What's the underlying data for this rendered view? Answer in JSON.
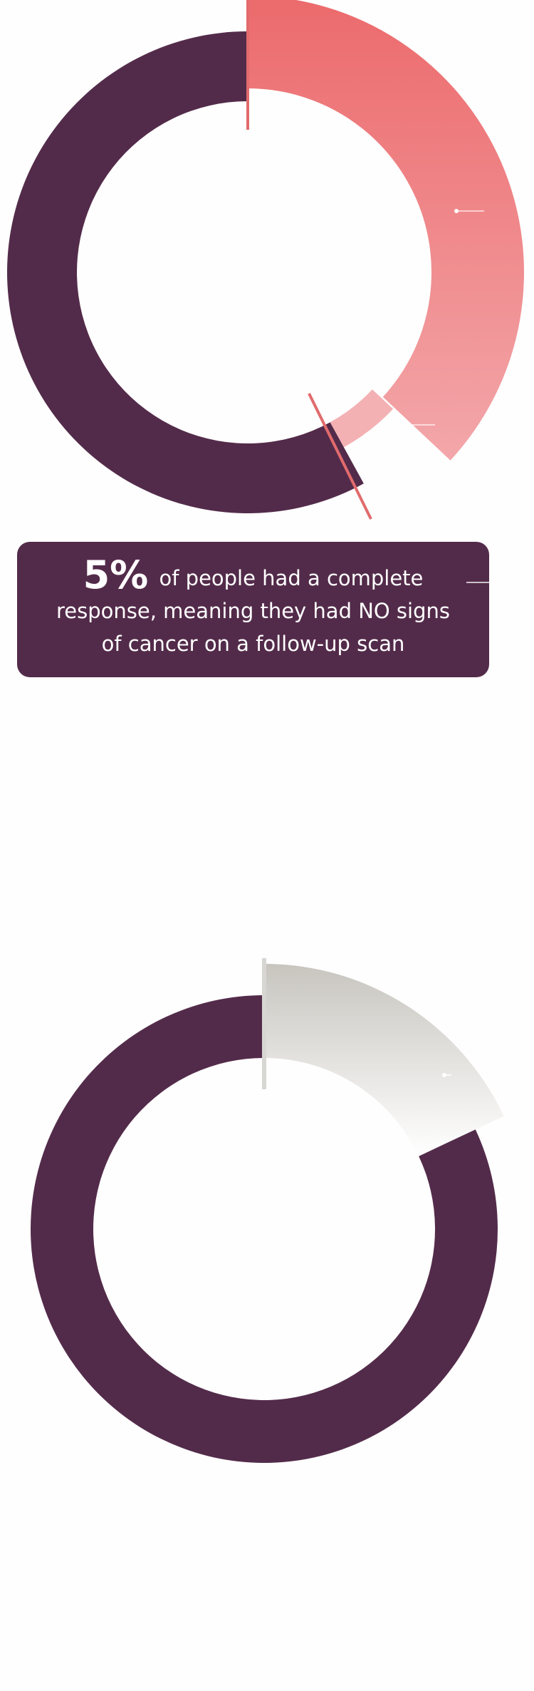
{
  "colors": {
    "plum": "#532b4a",
    "coral_top": "#ec6a6c",
    "coral_bottom": "#f3a7aa",
    "pink_light": "#f3b1b4",
    "grey_top": "#c8c5bf",
    "grey_bottom": "#ffffff",
    "marker_red": "#e16b6d",
    "marker_grey": "#d8d6d2"
  },
  "callout": {
    "value": "5%",
    "text": "of people had a complete response, meaning they had NO signs of cancer on a follow-up scan"
  },
  "chart_data": [
    {
      "type": "pie",
      "variant": "donut",
      "segments": [
        {
          "value": 37,
          "color": "coral-gradient"
        },
        {
          "value": 5,
          "color": "#f3b1b4"
        },
        {
          "value": 58,
          "color": "#532b4a"
        }
      ],
      "annotation": {
        "value": "5%",
        "text": "of people had a complete response, meaning they had NO signs of cancer on a follow-up scan"
      }
    },
    {
      "type": "pie",
      "variant": "donut",
      "segments": [
        {
          "value": 18,
          "color": "grey-gradient"
        },
        {
          "value": 82,
          "color": "#532b4a"
        }
      ]
    }
  ]
}
